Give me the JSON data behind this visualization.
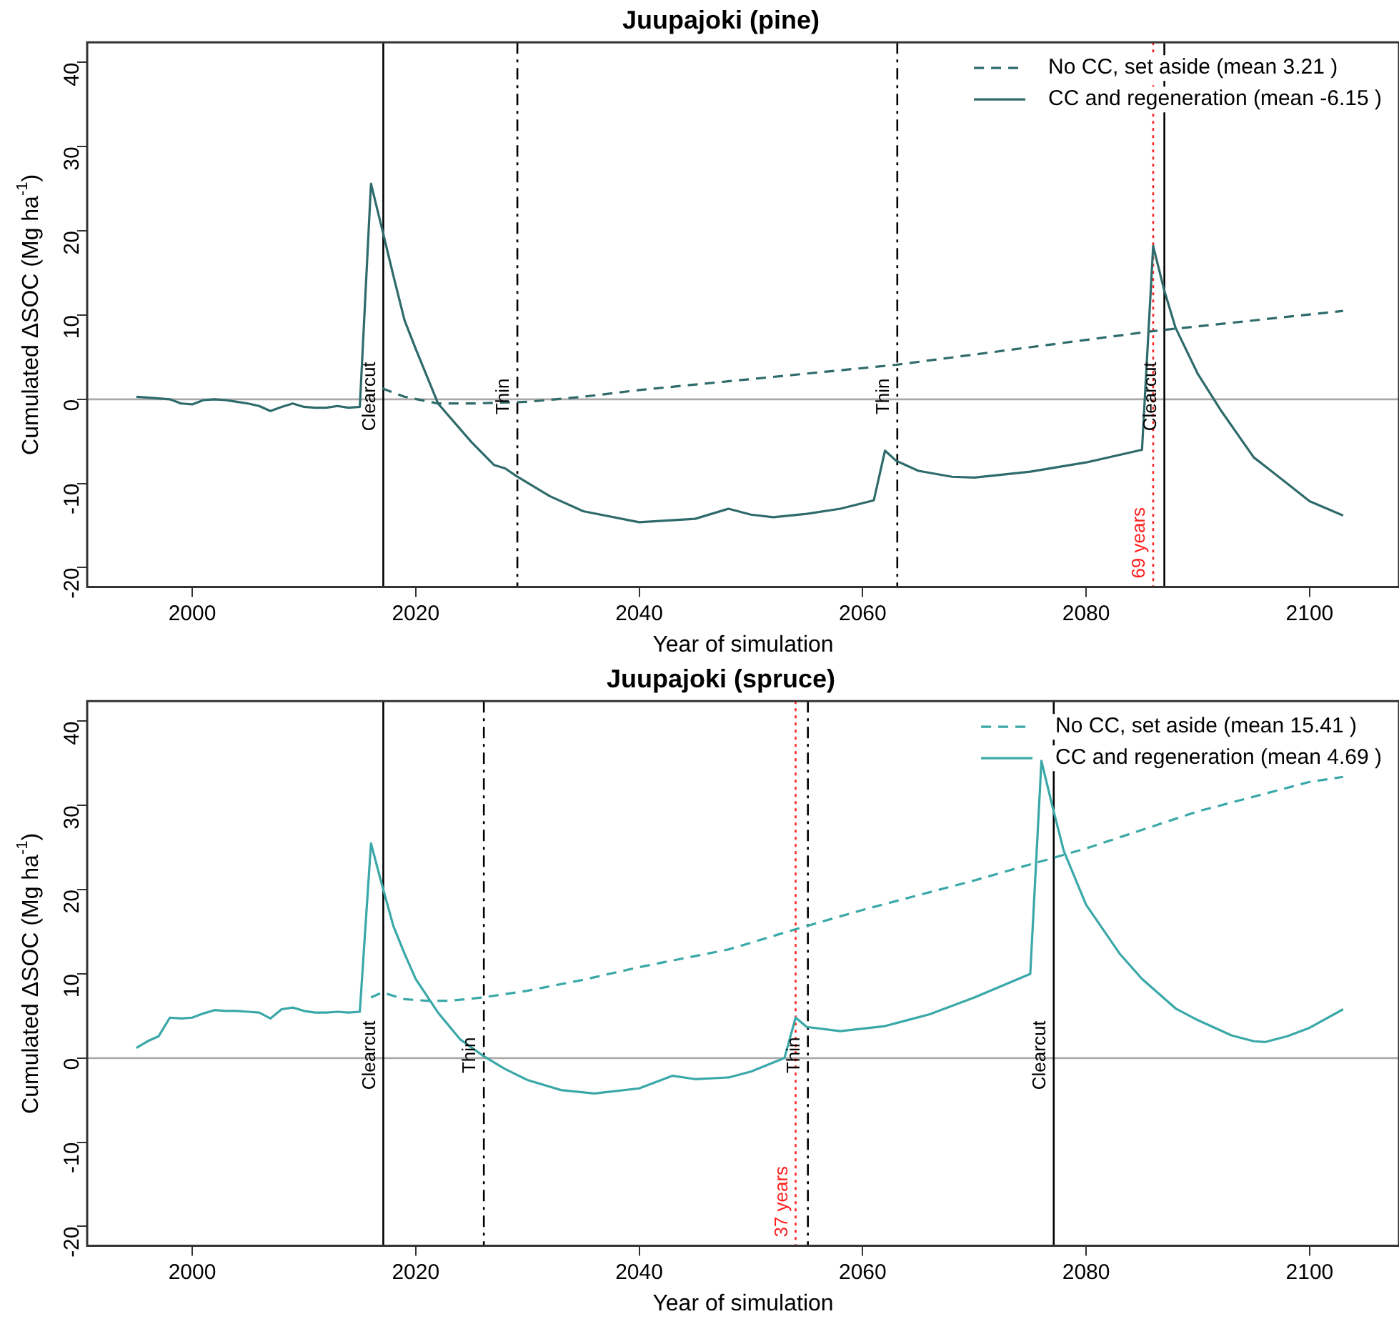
{
  "chart_data": [
    {
      "type": "line",
      "title": "Juupajoki (pine)",
      "xlabel": "Year of simulation",
      "ylabel": "Cumulated ΔSOC (Mg ha$^{-1}$)",
      "xlim": [
        1990.6,
        2108
      ],
      "xticks": [
        2000,
        2020,
        2040,
        2060,
        2080,
        2100
      ],
      "ylim": [
        -22.3,
        42.4
      ],
      "yticks": [
        -20,
        -10,
        0,
        10,
        20,
        30,
        40
      ],
      "grid": false,
      "legend": "top right",
      "marker": "none",
      "series": [
        {
          "name": "No CC, set aside (mean 3.21 )",
          "color": "#2f6b6b",
          "line_style": "dashed",
          "x": [
            2017,
            2019,
            2022,
            2025,
            2030,
            2035,
            2040,
            2050,
            2063,
            2086,
            2103
          ],
          "values": [
            1.3,
            0.3,
            -0.5,
            -0.5,
            -0.3,
            0.3,
            1.1,
            2.4,
            4.1,
            8.1,
            10.5
          ]
        },
        {
          "name": "CC and regeneration (mean -6.15 )",
          "color": "#2f6b6b",
          "line_style": "solid",
          "x": [
            1995,
            1996,
            1997,
            1998,
            1999,
            2000,
            2001,
            2002,
            2003,
            2004,
            2005,
            2006,
            2007,
            2008,
            2009,
            2010,
            2011,
            2012,
            2013,
            2014,
            2015,
            2016,
            2017,
            2018,
            2019,
            2020,
            2022,
            2025,
            2027,
            2028,
            2029,
            2032,
            2035,
            2040,
            2045,
            2048,
            2050,
            2052,
            2055,
            2058,
            2061,
            2062,
            2063,
            2065,
            2068,
            2070,
            2075,
            2080,
            2085,
            2086,
            2087,
            2088,
            2090,
            2092,
            2095,
            2098,
            2100,
            2103
          ],
          "values": [
            0.3,
            0.2,
            0.1,
            0,
            -0.5,
            -0.6,
            -0.1,
            0,
            -0.1,
            -0.3,
            -0.5,
            -0.8,
            -1.4,
            -0.9,
            -0.5,
            -0.9,
            -1,
            -1,
            -0.8,
            -1,
            -0.9,
            25.6,
            20.2,
            14.7,
            9.4,
            6,
            -0.5,
            -5.1,
            -7.8,
            -8.2,
            -9.1,
            -11.5,
            -13.3,
            -14.6,
            -14.2,
            -13,
            -13.7,
            -14,
            -13.6,
            -13,
            -12,
            -6.1,
            -7.3,
            -8.5,
            -9.2,
            -9.3,
            -8.6,
            -7.5,
            -6,
            18.2,
            12.9,
            8.5,
            3,
            -1.2,
            -6.9,
            -10,
            -12.1,
            -13.8
          ]
        }
      ],
      "ref_lines": [
        {
          "axis": "y",
          "value": 0,
          "color": "#aaaaaa",
          "line_style": "solid"
        },
        {
          "axis": "x",
          "value": 2017.1,
          "label": "Clearcut",
          "color": "#000000",
          "line_style": "solid"
        },
        {
          "axis": "x",
          "value": 2029.1,
          "label": "Thin",
          "color": "#000000",
          "line_style": "dashdot"
        },
        {
          "axis": "x",
          "value": 2063.1,
          "label": "Thin",
          "color": "#000000",
          "line_style": "dashdot"
        },
        {
          "axis": "x",
          "value": 2087,
          "label": "Clearcut",
          "color": "#000000",
          "line_style": "solid"
        },
        {
          "axis": "x",
          "value": 2086,
          "label": "69 years",
          "color": "#ff2020",
          "line_style": "dotted"
        }
      ]
    },
    {
      "type": "line",
      "title": "Juupajoki (spruce)",
      "xlabel": "Year of simulation",
      "ylabel": "Cumulated ΔSOC (Mg ha$^{-1}$)",
      "xlim": [
        1990.6,
        2108
      ],
      "xticks": [
        2000,
        2020,
        2040,
        2060,
        2080,
        2100
      ],
      "ylim": [
        -22.3,
        42.4
      ],
      "yticks": [
        -20,
        -10,
        0,
        10,
        20,
        30,
        40
      ],
      "grid": false,
      "legend": "top right",
      "marker": "none",
      "series": [
        {
          "name": "No CC, set aside (mean 15.41 )",
          "color": "#3aa8a8",
          "line_style": "dashed",
          "x": [
            2016,
            2017,
            2019,
            2021,
            2023,
            2026,
            2030,
            2035,
            2040,
            2048,
            2054,
            2060,
            2070,
            2080,
            2090,
            2100,
            2103
          ],
          "values": [
            7.2,
            7.8,
            7,
            6.8,
            6.8,
            7.2,
            8,
            9.3,
            10.8,
            12.9,
            15.3,
            17.6,
            21.1,
            24.9,
            29.3,
            32.8,
            33.4
          ]
        },
        {
          "name": "CC and regeneration (mean 4.69 )",
          "color": "#3aa8a8",
          "line_style": "solid",
          "x": [
            1995,
            1996,
            1997,
            1998,
            1999,
            2000,
            2001,
            2002,
            2003,
            2004,
            2005,
            2006,
            2007,
            2008,
            2009,
            2010,
            2011,
            2012,
            2013,
            2014,
            2015,
            2016,
            2017,
            2018,
            2019,
            2020,
            2022,
            2024,
            2026,
            2028,
            2030,
            2033,
            2036,
            2040,
            2043,
            2045,
            2048,
            2050,
            2053,
            2054,
            2055,
            2058,
            2062,
            2066,
            2070,
            2075,
            2076,
            2077,
            2078,
            2080,
            2083,
            2085,
            2088,
            2090,
            2093,
            2095,
            2096,
            2098,
            2100,
            2103
          ],
          "values": [
            1.2,
            2,
            2.6,
            4.8,
            4.7,
            4.8,
            5.3,
            5.7,
            5.6,
            5.6,
            5.5,
            5.4,
            4.7,
            5.8,
            6,
            5.6,
            5.4,
            5.4,
            5.5,
            5.4,
            5.5,
            25.5,
            20.5,
            15.7,
            12.4,
            9.4,
            5.4,
            2.2,
            0.3,
            -1.3,
            -2.6,
            -3.8,
            -4.2,
            -3.6,
            -2.1,
            -2.5,
            -2.3,
            -1.6,
            0,
            4.8,
            3.7,
            3.2,
            3.8,
            5.2,
            7.2,
            10,
            35.3,
            29.8,
            24.6,
            18.2,
            12.4,
            9.4,
            5.9,
            4.5,
            2.7,
            2,
            1.9,
            2.6,
            3.6,
            5.8
          ]
        }
      ],
      "ref_lines": [
        {
          "axis": "y",
          "value": 0,
          "color": "#aaaaaa",
          "line_style": "solid"
        },
        {
          "axis": "x",
          "value": 2017.1,
          "label": "Clearcut",
          "color": "#000000",
          "line_style": "solid"
        },
        {
          "axis": "x",
          "value": 2026.1,
          "label": "Thin",
          "color": "#000000",
          "line_style": "dashdot"
        },
        {
          "axis": "x",
          "value": 2055.1,
          "label": "Thin",
          "color": "#000000",
          "line_style": "dashdot"
        },
        {
          "axis": "x",
          "value": 2077.1,
          "label": "Clearcut",
          "color": "#000000",
          "line_style": "solid"
        },
        {
          "axis": "x",
          "value": 2054,
          "label": "37 years",
          "color": "#ff2020",
          "line_style": "dotted"
        }
      ]
    }
  ]
}
